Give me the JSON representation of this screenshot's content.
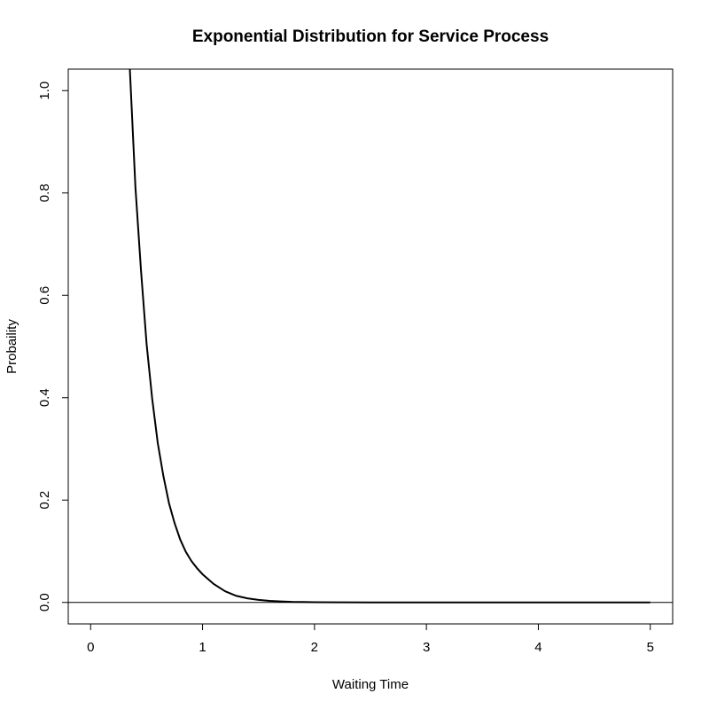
{
  "chart_data": {
    "type": "line",
    "title": "Exponential Distribution for Service Process",
    "xlabel": "Waiting Time",
    "ylabel": "Probaility",
    "xlim": [
      -0.2,
      5.2
    ],
    "ylim": [
      -0.042,
      1.042
    ],
    "x_ticks": [
      0,
      1,
      2,
      3,
      4,
      5
    ],
    "x_tick_labels": [
      "0",
      "1",
      "2",
      "3",
      "4",
      "5"
    ],
    "y_ticks": [
      0.0,
      0.2,
      0.4,
      0.6,
      0.8,
      1.0
    ],
    "y_tick_labels": [
      "0.0",
      "0.2",
      "0.4",
      "0.6",
      "0.8",
      "1.0"
    ],
    "reference_line_y": 0,
    "grid": false,
    "series": [
      {
        "x": [
          0.35,
          0.4,
          0.45,
          0.5,
          0.55,
          0.6,
          0.65,
          0.7,
          0.75,
          0.8,
          0.85,
          0.9,
          0.95,
          1.0,
          1.1,
          1.2,
          1.3,
          1.4,
          1.5,
          1.6,
          1.7,
          1.8,
          1.9,
          2.0,
          2.25,
          2.5,
          3.0,
          3.5,
          4.0,
          4.5,
          5.0
        ],
        "y": [
          1.044,
          0.812,
          0.649,
          0.505,
          0.398,
          0.311,
          0.247,
          0.194,
          0.155,
          0.123,
          0.099,
          0.081,
          0.067,
          0.055,
          0.036,
          0.022,
          0.013,
          0.008,
          0.005,
          0.003,
          0.002,
          0.001,
          0.0008,
          0.0005,
          0.0002,
          0.0001,
          0.0,
          0.0,
          0.0,
          0.0,
          0.0
        ]
      }
    ]
  }
}
